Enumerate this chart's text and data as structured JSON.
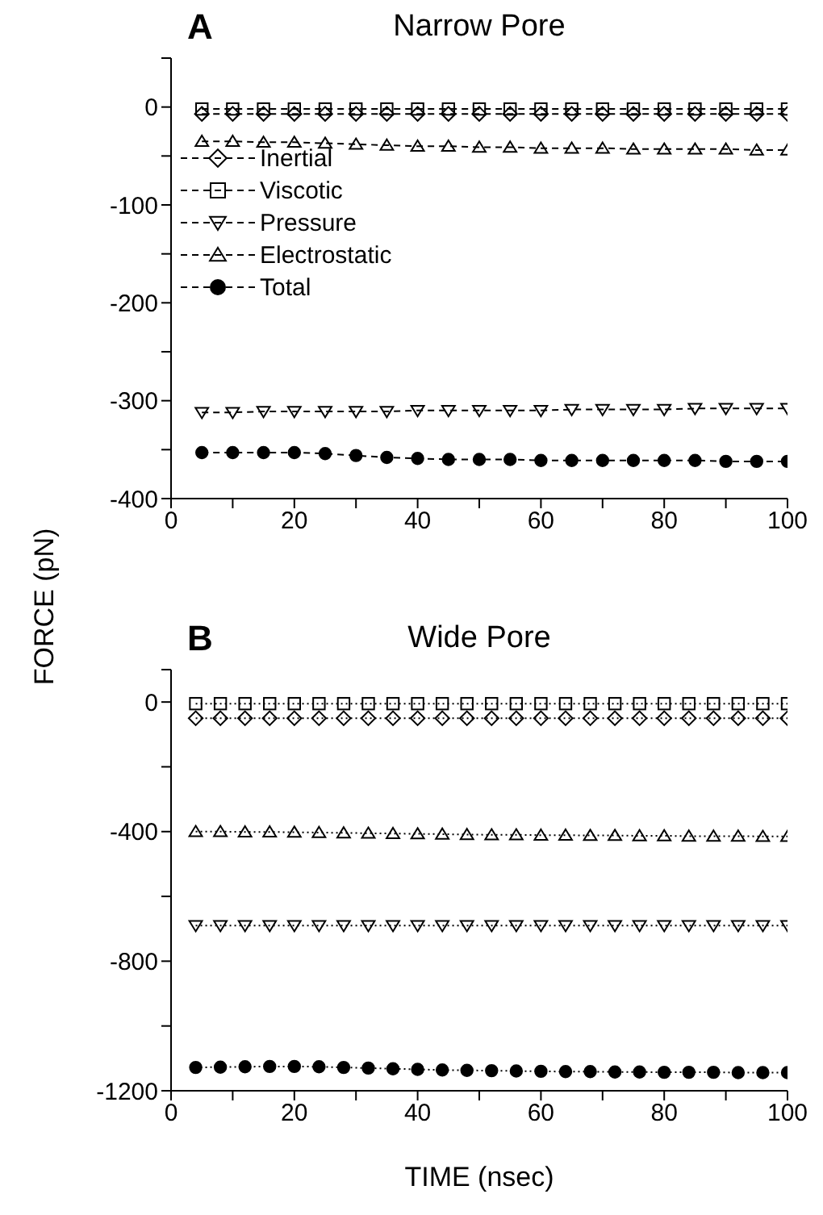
{
  "chart_data": [
    {
      "type": "line",
      "title": "Narrow Pore",
      "annotations": [
        "A"
      ],
      "ylabel": "FORCE (pN)",
      "legend": "top left",
      "line_style": "dashed",
      "grid": false,
      "x": [
        5,
        10,
        15,
        20,
        25,
        30,
        35,
        40,
        45,
        50,
        55,
        60,
        65,
        70,
        75,
        80,
        85,
        90,
        95,
        100
      ],
      "xlim": [
        0,
        100
      ],
      "xticks": [
        0,
        {
          "value": 10,
          "label": null
        },
        20,
        {
          "value": 30,
          "label": null
        },
        40,
        {
          "value": 50,
          "label": null
        },
        60,
        {
          "value": 70,
          "label": null
        },
        80,
        {
          "value": 90,
          "label": null
        },
        100
      ],
      "ylim": [
        -400,
        50
      ],
      "yticks": [
        -400,
        {
          "value": -350,
          "label": null
        },
        -300,
        {
          "value": -250,
          "label": null
        },
        -200,
        {
          "value": -150,
          "label": null
        },
        -100,
        {
          "value": -50,
          "label": null
        },
        0,
        {
          "value": 50,
          "label": null
        }
      ],
      "series": [
        {
          "name": "Inertial",
          "color": "#000000",
          "marker": "diamond",
          "values": [
            -7,
            -7,
            -7,
            -7,
            -7,
            -7,
            -7,
            -7,
            -7,
            -7,
            -7,
            -7,
            -7,
            -7,
            -7,
            -7,
            -7,
            -7,
            -7,
            -7
          ]
        },
        {
          "name": "Viscotic",
          "color": "#000000",
          "marker": "square",
          "values": [
            -2,
            -2,
            -2,
            -2,
            -2,
            -2,
            -2,
            -2,
            -2,
            -2,
            -2,
            -2,
            -2,
            -2,
            -2,
            -2,
            -2,
            -2,
            -2,
            -2
          ]
        },
        {
          "name": "Pressure",
          "color": "#000000",
          "marker": "triangle-down",
          "values": [
            -312,
            -312,
            -311,
            -311,
            -311,
            -311,
            -311,
            -310,
            -310,
            -310,
            -310,
            -310,
            -309,
            -309,
            -309,
            -309,
            -308,
            -308,
            -308,
            -308
          ]
        },
        {
          "name": "Electrostatic",
          "color": "#000000",
          "marker": "triangle",
          "values": [
            -35,
            -35,
            -36,
            -36,
            -37,
            -38,
            -39,
            -40,
            -40,
            -41,
            -41,
            -42,
            -42,
            -42,
            -43,
            -43,
            -43,
            -43,
            -44,
            -44
          ]
        },
        {
          "name": "Total",
          "color": "#000000",
          "marker": "circle",
          "values": [
            -353,
            -353,
            -353,
            -353,
            -354,
            -356,
            -358,
            -359,
            -360,
            -360,
            -360,
            -361,
            -361,
            -361,
            -361,
            -361,
            -361,
            -362,
            -362,
            -362
          ]
        }
      ]
    },
    {
      "type": "line",
      "title": "Wide Pore",
      "annotations": [
        "B"
      ],
      "xlabel": "TIME (nsec)",
      "line_style": "dotted",
      "grid": false,
      "x": [
        4,
        8,
        12,
        16,
        20,
        24,
        28,
        32,
        36,
        40,
        44,
        48,
        52,
        56,
        60,
        64,
        68,
        72,
        76,
        80,
        84,
        88,
        92,
        96,
        100
      ],
      "xlim": [
        0,
        100
      ],
      "xticks": [
        0,
        {
          "value": 10,
          "label": null
        },
        20,
        {
          "value": 30,
          "label": null
        },
        40,
        {
          "value": 50,
          "label": null
        },
        60,
        {
          "value": 70,
          "label": null
        },
        80,
        {
          "value": 90,
          "label": null
        },
        100
      ],
      "ylim": [
        -1200,
        100
      ],
      "yticks": [
        -1200,
        {
          "value": -1000,
          "label": null
        },
        -800,
        {
          "value": -600,
          "label": null
        },
        -400,
        {
          "value": -200,
          "label": null
        },
        0,
        {
          "value": 100,
          "label": null
        }
      ],
      "series": [
        {
          "color": "#000000",
          "marker": "diamond",
          "values": [
            -50,
            -50,
            -50,
            -50,
            -50,
            -50,
            -50,
            -50,
            -50,
            -50,
            -50,
            -50,
            -50,
            -50,
            -50,
            -50,
            -50,
            -50,
            -50,
            -50,
            -50,
            -50,
            -50,
            -50,
            -50
          ]
        },
        {
          "color": "#000000",
          "marker": "square",
          "values": [
            -5,
            -5,
            -5,
            -5,
            -5,
            -5,
            -5,
            -5,
            -5,
            -5,
            -5,
            -5,
            -5,
            -5,
            -5,
            -5,
            -5,
            -5,
            -5,
            -5,
            -5,
            -5,
            -5,
            -5,
            -5
          ]
        },
        {
          "color": "#000000",
          "marker": "triangle-down",
          "values": [
            -690,
            -690,
            -690,
            -690,
            -690,
            -690,
            -690,
            -690,
            -690,
            -690,
            -690,
            -690,
            -690,
            -690,
            -690,
            -690,
            -690,
            -690,
            -690,
            -690,
            -690,
            -690,
            -690,
            -690,
            -690
          ]
        },
        {
          "color": "#000000",
          "marker": "triangle",
          "values": [
            -400,
            -400,
            -401,
            -401,
            -402,
            -403,
            -404,
            -405,
            -406,
            -407,
            -408,
            -409,
            -410,
            -410,
            -411,
            -411,
            -412,
            -412,
            -413,
            -413,
            -414,
            -414,
            -414,
            -415,
            -415
          ]
        },
        {
          "color": "#000000",
          "marker": "circle",
          "values": [
            -1128,
            -1127,
            -1126,
            -1125,
            -1125,
            -1126,
            -1128,
            -1130,
            -1132,
            -1134,
            -1136,
            -1137,
            -1138,
            -1139,
            -1140,
            -1141,
            -1141,
            -1142,
            -1142,
            -1143,
            -1143,
            -1143,
            -1144,
            -1144,
            -1144
          ]
        }
      ]
    }
  ]
}
